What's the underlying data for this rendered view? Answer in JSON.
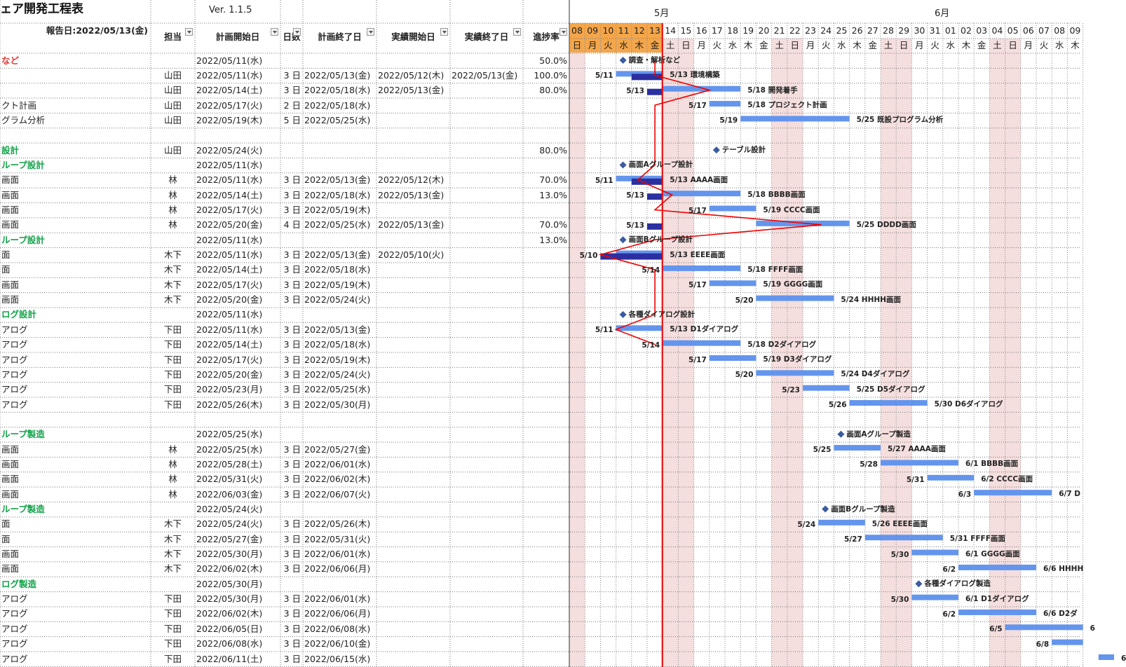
{
  "title": "ェア開発工程表",
  "version": "Ver. 1.1.5",
  "report_date": "報告日:2022/05/13(金)",
  "headers": {
    "tanto": "担当",
    "plan_start": "計画開始日",
    "days": "日数",
    "plan_end": "計画終了日",
    "actual_start": "実績開始日",
    "actual_end": "実績終了日",
    "progress": "進捗率"
  },
  "months": {
    "may": "5月",
    "jun": "6月"
  },
  "day_nums": [
    "08",
    "09",
    "10",
    "11",
    "12",
    "13",
    "14",
    "15",
    "16",
    "17",
    "18",
    "19",
    "20",
    "21",
    "22",
    "23",
    "24",
    "25",
    "26",
    "27",
    "28",
    "29",
    "30",
    "31",
    "01",
    "02",
    "03",
    "04",
    "05",
    "06",
    "07",
    "08",
    "09"
  ],
  "weekdays": [
    "日",
    "月",
    "火",
    "水",
    "木",
    "金",
    "土",
    "日",
    "月",
    "火",
    "水",
    "木",
    "金",
    "土",
    "日",
    "月",
    "火",
    "水",
    "木",
    "金",
    "土",
    "日",
    "月",
    "火",
    "水",
    "木",
    "金",
    "土",
    "日",
    "月",
    "火",
    "水",
    "木"
  ],
  "rows": [
    {
      "name": "など",
      "type": "red",
      "tanto": "",
      "start": "2022/05/11(水)",
      "days": "",
      "end": "",
      "astart": "",
      "aend": "",
      "prog": "50.0%"
    },
    {
      "name": "",
      "type": "",
      "tanto": "山田",
      "start": "2022/05/11(水)",
      "days": "3 日",
      "end": "2022/05/13(金)",
      "astart": "2022/05/12(木)",
      "aend": "2022/05/13(金)",
      "prog": "100.0%"
    },
    {
      "name": "",
      "type": "",
      "tanto": "山田",
      "start": "2022/05/14(土)",
      "days": "3 日",
      "end": "2022/05/18(水)",
      "astart": "2022/05/13(金)",
      "aend": "",
      "prog": "80.0%"
    },
    {
      "name": "クト計画",
      "type": "",
      "tanto": "山田",
      "start": "2022/05/17(火)",
      "days": "2 日",
      "end": "2022/05/18(水)",
      "astart": "",
      "aend": "",
      "prog": ""
    },
    {
      "name": "グラム分析",
      "type": "",
      "tanto": "山田",
      "start": "2022/05/19(木)",
      "days": "5 日",
      "end": "2022/05/25(水)",
      "astart": "",
      "aend": "",
      "prog": ""
    },
    {
      "name": "",
      "type": "",
      "tanto": "",
      "start": "",
      "days": "",
      "end": "",
      "astart": "",
      "aend": "",
      "prog": ""
    },
    {
      "name": "設計",
      "type": "green",
      "tanto": "山田",
      "start": "2022/05/24(火)",
      "days": "",
      "end": "",
      "astart": "",
      "aend": "",
      "prog": "80.0%"
    },
    {
      "name": "ループ設計",
      "type": "green",
      "tanto": "",
      "start": "2022/05/11(水)",
      "days": "",
      "end": "",
      "astart": "",
      "aend": "",
      "prog": ""
    },
    {
      "name": "画面",
      "type": "",
      "tanto": "林",
      "start": "2022/05/11(水)",
      "days": "3 日",
      "end": "2022/05/13(金)",
      "astart": "2022/05/12(木)",
      "aend": "",
      "prog": "70.0%"
    },
    {
      "name": "画面",
      "type": "",
      "tanto": "林",
      "start": "2022/05/14(土)",
      "days": "3 日",
      "end": "2022/05/18(水)",
      "astart": "2022/05/13(金)",
      "aend": "",
      "prog": "13.0%"
    },
    {
      "name": "画面",
      "type": "",
      "tanto": "林",
      "start": "2022/05/17(火)",
      "days": "3 日",
      "end": "2022/05/19(木)",
      "astart": "",
      "aend": "",
      "prog": ""
    },
    {
      "name": "画面",
      "type": "",
      "tanto": "林",
      "start": "2022/05/20(金)",
      "days": "4 日",
      "end": "2022/05/25(水)",
      "astart": "2022/05/13(金)",
      "aend": "",
      "prog": "70.0%"
    },
    {
      "name": "ループ設計",
      "type": "green",
      "tanto": "",
      "start": "2022/05/11(水)",
      "days": "",
      "end": "",
      "astart": "",
      "aend": "",
      "prog": "13.0%"
    },
    {
      "name": "面",
      "type": "",
      "tanto": "木下",
      "start": "2022/05/11(水)",
      "days": "3 日",
      "end": "2022/05/13(金)",
      "astart": "2022/05/10(火)",
      "aend": "",
      "prog": ""
    },
    {
      "name": "面",
      "type": "",
      "tanto": "木下",
      "start": "2022/05/14(土)",
      "days": "3 日",
      "end": "2022/05/18(水)",
      "astart": "",
      "aend": "",
      "prog": ""
    },
    {
      "name": "画面",
      "type": "",
      "tanto": "木下",
      "start": "2022/05/17(火)",
      "days": "3 日",
      "end": "2022/05/19(木)",
      "astart": "",
      "aend": "",
      "prog": ""
    },
    {
      "name": "画面",
      "type": "",
      "tanto": "木下",
      "start": "2022/05/20(金)",
      "days": "3 日",
      "end": "2022/05/24(火)",
      "astart": "",
      "aend": "",
      "prog": ""
    },
    {
      "name": "ログ設計",
      "type": "green",
      "tanto": "",
      "start": "2022/05/11(水)",
      "days": "",
      "end": "",
      "astart": "",
      "aend": "",
      "prog": ""
    },
    {
      "name": "アログ",
      "type": "",
      "tanto": "下田",
      "start": "2022/05/11(水)",
      "days": "3 日",
      "end": "2022/05/13(金)",
      "astart": "",
      "aend": "",
      "prog": ""
    },
    {
      "name": "アログ",
      "type": "",
      "tanto": "下田",
      "start": "2022/05/14(土)",
      "days": "3 日",
      "end": "2022/05/18(水)",
      "astart": "",
      "aend": "",
      "prog": ""
    },
    {
      "name": "アログ",
      "type": "",
      "tanto": "下田",
      "start": "2022/05/17(火)",
      "days": "3 日",
      "end": "2022/05/19(木)",
      "astart": "",
      "aend": "",
      "prog": ""
    },
    {
      "name": "アログ",
      "type": "",
      "tanto": "下田",
      "start": "2022/05/20(金)",
      "days": "3 日",
      "end": "2022/05/24(火)",
      "astart": "",
      "aend": "",
      "prog": ""
    },
    {
      "name": "アログ",
      "type": "",
      "tanto": "下田",
      "start": "2022/05/23(月)",
      "days": "3 日",
      "end": "2022/05/25(水)",
      "astart": "",
      "aend": "",
      "prog": ""
    },
    {
      "name": "アログ",
      "type": "",
      "tanto": "下田",
      "start": "2022/05/26(木)",
      "days": "3 日",
      "end": "2022/05/30(月)",
      "astart": "",
      "aend": "",
      "prog": ""
    },
    {
      "name": "",
      "type": "",
      "tanto": "",
      "start": "",
      "days": "",
      "end": "",
      "astart": "",
      "aend": "",
      "prog": ""
    },
    {
      "name": "ループ製造",
      "type": "green",
      "tanto": "",
      "start": "2022/05/25(水)",
      "days": "",
      "end": "",
      "astart": "",
      "aend": "",
      "prog": ""
    },
    {
      "name": "画面",
      "type": "",
      "tanto": "林",
      "start": "2022/05/25(水)",
      "days": "3 日",
      "end": "2022/05/27(金)",
      "astart": "",
      "aend": "",
      "prog": ""
    },
    {
      "name": "画面",
      "type": "",
      "tanto": "林",
      "start": "2022/05/28(土)",
      "days": "3 日",
      "end": "2022/06/01(水)",
      "astart": "",
      "aend": "",
      "prog": ""
    },
    {
      "name": "画面",
      "type": "",
      "tanto": "林",
      "start": "2022/05/31(火)",
      "days": "3 日",
      "end": "2022/06/02(木)",
      "astart": "",
      "aend": "",
      "prog": ""
    },
    {
      "name": "画面",
      "type": "",
      "tanto": "林",
      "start": "2022/06/03(金)",
      "days": "3 日",
      "end": "2022/06/07(火)",
      "astart": "",
      "aend": "",
      "prog": ""
    },
    {
      "name": "ループ製造",
      "type": "green",
      "tanto": "",
      "start": "2022/05/24(火)",
      "days": "",
      "end": "",
      "astart": "",
      "aend": "",
      "prog": ""
    },
    {
      "name": "面",
      "type": "",
      "tanto": "木下",
      "start": "2022/05/24(火)",
      "days": "3 日",
      "end": "2022/05/26(木)",
      "astart": "",
      "aend": "",
      "prog": ""
    },
    {
      "name": "面",
      "type": "",
      "tanto": "木下",
      "start": "2022/05/27(金)",
      "days": "3 日",
      "end": "2022/05/31(火)",
      "astart": "",
      "aend": "",
      "prog": ""
    },
    {
      "name": "画面",
      "type": "",
      "tanto": "木下",
      "start": "2022/05/30(月)",
      "days": "3 日",
      "end": "2022/06/01(水)",
      "astart": "",
      "aend": "",
      "prog": ""
    },
    {
      "name": "画面",
      "type": "",
      "tanto": "木下",
      "start": "2022/06/02(木)",
      "days": "3 日",
      "end": "2022/06/06(月)",
      "astart": "",
      "aend": "",
      "prog": ""
    },
    {
      "name": "ログ製造",
      "type": "green",
      "tanto": "",
      "start": "2022/05/30(月)",
      "days": "",
      "end": "",
      "astart": "",
      "aend": "",
      "prog": ""
    },
    {
      "name": "アログ",
      "type": "",
      "tanto": "下田",
      "start": "2022/05/30(月)",
      "days": "3 日",
      "end": "2022/06/01(水)",
      "astart": "",
      "aend": "",
      "prog": ""
    },
    {
      "name": "アログ",
      "type": "",
      "tanto": "下田",
      "start": "2022/06/02(木)",
      "days": "3 日",
      "end": "2022/06/06(月)",
      "astart": "",
      "aend": "",
      "prog": ""
    },
    {
      "name": "アログ",
      "type": "",
      "tanto": "下田",
      "start": "2022/06/05(日)",
      "days": "3 日",
      "end": "2022/06/08(水)",
      "astart": "",
      "aend": "",
      "prog": ""
    },
    {
      "name": "アログ",
      "type": "",
      "tanto": "下田",
      "start": "2022/06/08(水)",
      "days": "3 日",
      "end": "2022/06/10(金)",
      "astart": "",
      "aend": "",
      "prog": ""
    },
    {
      "name": "アログ",
      "type": "",
      "tanto": "下田",
      "start": "2022/06/11(土)",
      "days": "3 日",
      "end": "2022/06/15(水)",
      "astart": "",
      "aend": "",
      "prog": ""
    }
  ],
  "gantt": {
    "today_day_index": 5,
    "milestones": [
      {
        "row": 0,
        "day": 3,
        "label": "調査・解析など"
      },
      {
        "row": 6,
        "day": 9,
        "label": "テーブル設計"
      },
      {
        "row": 7,
        "day": 3,
        "label": "画面Aグループ設計"
      },
      {
        "row": 12,
        "day": 3,
        "label": "画面Bグループ設計"
      },
      {
        "row": 17,
        "day": 3,
        "label": "各種ダイアログ設計"
      },
      {
        "row": 25,
        "day": 17,
        "label": "画面Aグループ製造"
      },
      {
        "row": 30,
        "day": 16,
        "label": "画面Bグループ製造"
      },
      {
        "row": 35,
        "day": 22,
        "label": "各種ダイアログ製造"
      }
    ],
    "bars": [
      {
        "row": 1,
        "s": 3,
        "e": 5,
        "as": 4,
        "ae": 5,
        "ls": "5/11",
        "le": "5/13",
        "name": "環境構築"
      },
      {
        "row": 2,
        "s": 6,
        "e": 10,
        "as": 5,
        "ae": 5,
        "ls": "5/13",
        "le": "5/18",
        "name": "開発着手"
      },
      {
        "row": 3,
        "s": 9,
        "e": 10,
        "ls": "5/17",
        "le": "5/18",
        "name": "プロジェクト計画"
      },
      {
        "row": 4,
        "s": 11,
        "e": 17,
        "ls": "5/19",
        "le": "5/25",
        "name": "既設プログラム分析"
      },
      {
        "row": 8,
        "s": 3,
        "e": 5,
        "as": 4,
        "ae": 5,
        "ls": "5/11",
        "le": "5/13",
        "name": "AAAA画面"
      },
      {
        "row": 9,
        "s": 6,
        "e": 10,
        "as": 5,
        "ae": 5,
        "ls": "5/13",
        "le": "5/18",
        "name": "BBBB画面"
      },
      {
        "row": 10,
        "s": 9,
        "e": 11,
        "ls": "5/17",
        "le": "5/19",
        "name": "CCCC画面"
      },
      {
        "row": 11,
        "s": 12,
        "e": 17,
        "as": 5,
        "ae": 5,
        "ls": "5/13",
        "le": "5/25",
        "name": "DDDD画面"
      },
      {
        "row": 13,
        "s": 3,
        "e": 5,
        "as": 2,
        "ae": 5,
        "ls": "5/10",
        "le": "5/13",
        "name": "EEEE画面"
      },
      {
        "row": 14,
        "s": 6,
        "e": 10,
        "ls": "5/14",
        "le": "5/18",
        "name": "FFFF画面"
      },
      {
        "row": 15,
        "s": 9,
        "e": 11,
        "ls": "5/17",
        "le": "5/19",
        "name": "GGGG画面"
      },
      {
        "row": 16,
        "s": 12,
        "e": 16,
        "ls": "5/20",
        "le": "5/24",
        "name": "HHHH画面"
      },
      {
        "row": 18,
        "s": 3,
        "e": 5,
        "ls": "5/11",
        "le": "5/13",
        "name": "D1ダイアログ"
      },
      {
        "row": 19,
        "s": 6,
        "e": 10,
        "ls": "5/14",
        "le": "5/18",
        "name": "D2ダイアログ"
      },
      {
        "row": 20,
        "s": 9,
        "e": 11,
        "ls": "5/17",
        "le": "5/19",
        "name": "D3ダイアログ"
      },
      {
        "row": 21,
        "s": 12,
        "e": 16,
        "ls": "5/20",
        "le": "5/24",
        "name": "D4ダイアログ"
      },
      {
        "row": 22,
        "s": 15,
        "e": 17,
        "ls": "5/23",
        "le": "5/25",
        "name": "D5ダイアログ"
      },
      {
        "row": 23,
        "s": 18,
        "e": 22,
        "ls": "5/26",
        "le": "5/30",
        "name": "D6ダイアログ"
      },
      {
        "row": 26,
        "s": 17,
        "e": 19,
        "ls": "5/25",
        "le": "5/27",
        "name": "AAAA画面"
      },
      {
        "row": 27,
        "s": 20,
        "e": 24,
        "ls": "5/28",
        "le": "6/1",
        "name": "BBBB画面"
      },
      {
        "row": 28,
        "s": 23,
        "e": 25,
        "ls": "5/31",
        "le": "6/2",
        "name": "CCCC画面"
      },
      {
        "row": 29,
        "s": 26,
        "e": 30,
        "ls": "6/3",
        "le": "6/7",
        "name": "D"
      },
      {
        "row": 31,
        "s": 16,
        "e": 18,
        "ls": "5/24",
        "le": "5/26",
        "name": "EEEE画面"
      },
      {
        "row": 32,
        "s": 19,
        "e": 23,
        "ls": "5/27",
        "le": "5/31",
        "name": "FFFF画面"
      },
      {
        "row": 33,
        "s": 22,
        "e": 24,
        "ls": "5/30",
        "le": "6/1",
        "name": "GGGG画面"
      },
      {
        "row": 34,
        "s": 25,
        "e": 29,
        "ls": "6/2",
        "le": "6/6",
        "name": "HHHH"
      },
      {
        "row": 36,
        "s": 22,
        "e": 24,
        "ls": "5/30",
        "le": "6/1",
        "name": "D1ダイアログ"
      },
      {
        "row": 37,
        "s": 25,
        "e": 29,
        "ls": "6/2",
        "le": "6/6",
        "name": "D2ダ"
      },
      {
        "row": 38,
        "s": 28,
        "e": 32,
        "ls": "6/5",
        "le": "6",
        "name": ""
      },
      {
        "row": 39,
        "s": 31,
        "e": 32,
        "ls": "6/8",
        "le": "",
        "name": ""
      },
      {
        "row": 40,
        "s": 34,
        "e": 34,
        "ls": "",
        "le": "6",
        "name": ""
      }
    ],
    "progress_line": [
      {
        "row": 0,
        "day": 5.5
      },
      {
        "row": 1,
        "day": 5.5
      },
      {
        "row": 2,
        "day": 9.0
      },
      {
        "row": 3,
        "day": 5.5
      },
      {
        "row": 7,
        "day": 5.5
      },
      {
        "row": 8,
        "day": 4.4
      },
      {
        "row": 9,
        "day": 6.6
      },
      {
        "row": 10,
        "day": 5.5
      },
      {
        "row": 11,
        "day": 16.2
      },
      {
        "row": 12,
        "day": 5.5
      },
      {
        "row": 13,
        "day": 2.0
      },
      {
        "row": 14,
        "day": 5.5
      },
      {
        "row": 17,
        "day": 5.5
      },
      {
        "row": 18,
        "day": 3.0
      },
      {
        "row": 19,
        "day": 5.5
      }
    ]
  }
}
